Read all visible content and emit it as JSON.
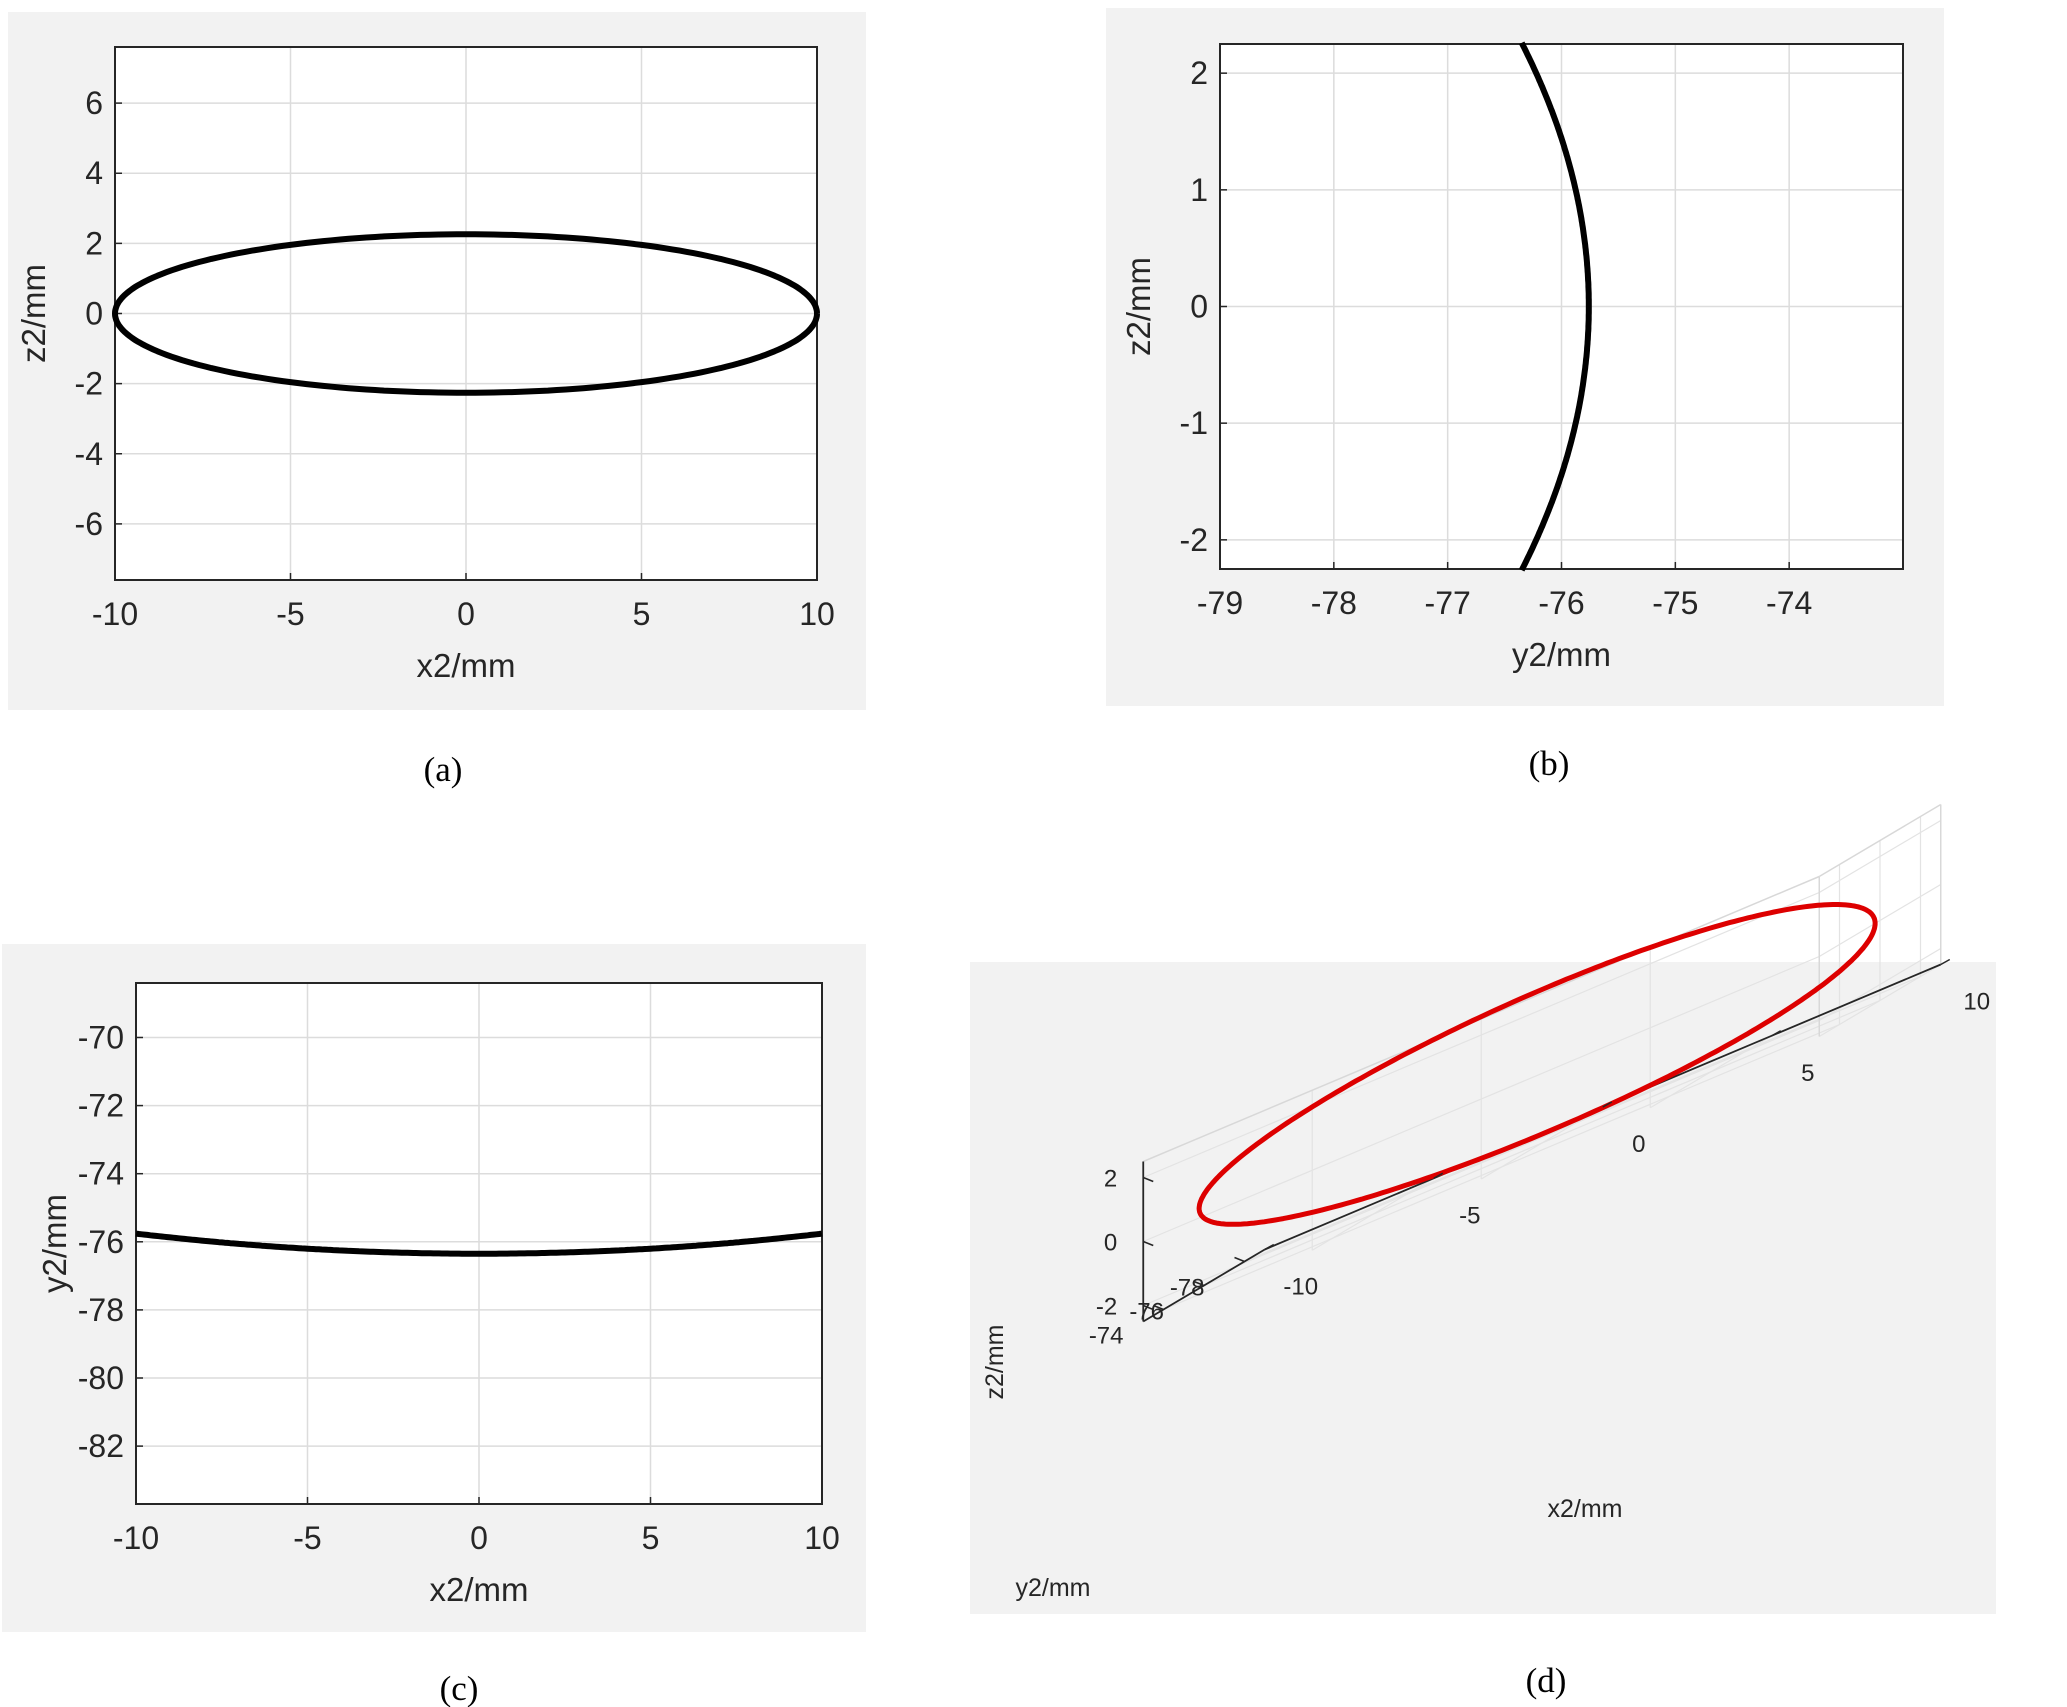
{
  "chart_data": [
    {
      "id": "a",
      "type": "line",
      "caption": "(a)",
      "xlabel": "x2/mm",
      "ylabel": "z2/mm",
      "xlim": [
        -10,
        10
      ],
      "ylim": [
        -7.6,
        7.6
      ],
      "xticks": [
        -10,
        -5,
        0,
        5,
        10
      ],
      "yticks": [
        -6,
        -4,
        -2,
        0,
        2,
        4,
        6
      ],
      "grid": true,
      "series": [
        {
          "color": "#000000",
          "x": [
            10,
            9.51,
            8.09,
            5.88,
            3.09,
            0,
            -3.09,
            -5.88,
            -8.09,
            -9.51,
            -10,
            -9.51,
            -8.09,
            -5.88,
            -3.09,
            0,
            3.09,
            5.88,
            8.09,
            9.51,
            10
          ],
          "y": [
            0,
            0.7,
            1.33,
            1.83,
            2.15,
            2.26,
            2.15,
            1.83,
            1.33,
            0.7,
            0,
            -0.7,
            -1.33,
            -1.83,
            -2.15,
            -2.26,
            -2.15,
            -1.83,
            -1.33,
            -0.7,
            0
          ]
        }
      ]
    },
    {
      "id": "b",
      "type": "line",
      "caption": "(b)",
      "xlabel": "y2/mm",
      "ylabel": "z2/mm",
      "xlim": [
        -79,
        -73
      ],
      "ylim": [
        -2.25,
        2.25
      ],
      "xticks": [
        -79,
        -78,
        -77,
        -76,
        -75,
        -74
      ],
      "yticks": [
        -2,
        -1,
        0,
        1,
        2
      ],
      "grid": true,
      "series": [
        {
          "color": "#000000",
          "x": [
            -76.35,
            -76.2,
            -76.06,
            -75.94,
            -75.85,
            -75.79,
            -75.76,
            -75.79,
            -75.85,
            -75.94,
            -76.06,
            -76.2,
            -76.35
          ],
          "y": [
            2.26,
            1.9,
            1.5,
            1.1,
            0.7,
            0.35,
            0,
            -0.35,
            -0.7,
            -1.1,
            -1.5,
            -1.9,
            -2.26
          ]
        }
      ]
    },
    {
      "id": "c",
      "type": "line",
      "caption": "(c)",
      "xlabel": "x2/mm",
      "ylabel": "y2/mm",
      "xlim": [
        -10,
        10
      ],
      "ylim": [
        -83.7,
        -68.4
      ],
      "xticks": [
        -10,
        -5,
        0,
        5,
        10
      ],
      "yticks": [
        -82,
        -80,
        -78,
        -76,
        -74,
        -72,
        -70
      ],
      "grid": true,
      "series": [
        {
          "color": "#000000",
          "x": [
            -10,
            -7.5,
            -5,
            -2.5,
            0,
            2.5,
            5,
            7.5,
            10
          ],
          "y": [
            -75.76,
            -76.01,
            -76.19,
            -76.31,
            -76.35,
            -76.31,
            -76.19,
            -76.01,
            -75.76
          ]
        }
      ]
    },
    {
      "id": "d",
      "type": "line3d",
      "caption": "(d)",
      "xlabel": "x2/mm",
      "ylabel": "y2/mm",
      "zlabel": "z2/mm",
      "xlim": [
        -10,
        10
      ],
      "ylim": [
        -79,
        -73
      ],
      "zlim": [
        -2.5,
        2.5
      ],
      "xticks": [
        -10,
        -5,
        0,
        5,
        10
      ],
      "yticks": [
        -78,
        -76,
        -74
      ],
      "zticks": [
        -2,
        0,
        2
      ],
      "grid": true,
      "series": [
        {
          "color": "#dd0000",
          "param": "x = 10 cos t, z = 2.26 sin t, y = -76.35 + 0.59 (x/10)^2"
        }
      ]
    }
  ]
}
